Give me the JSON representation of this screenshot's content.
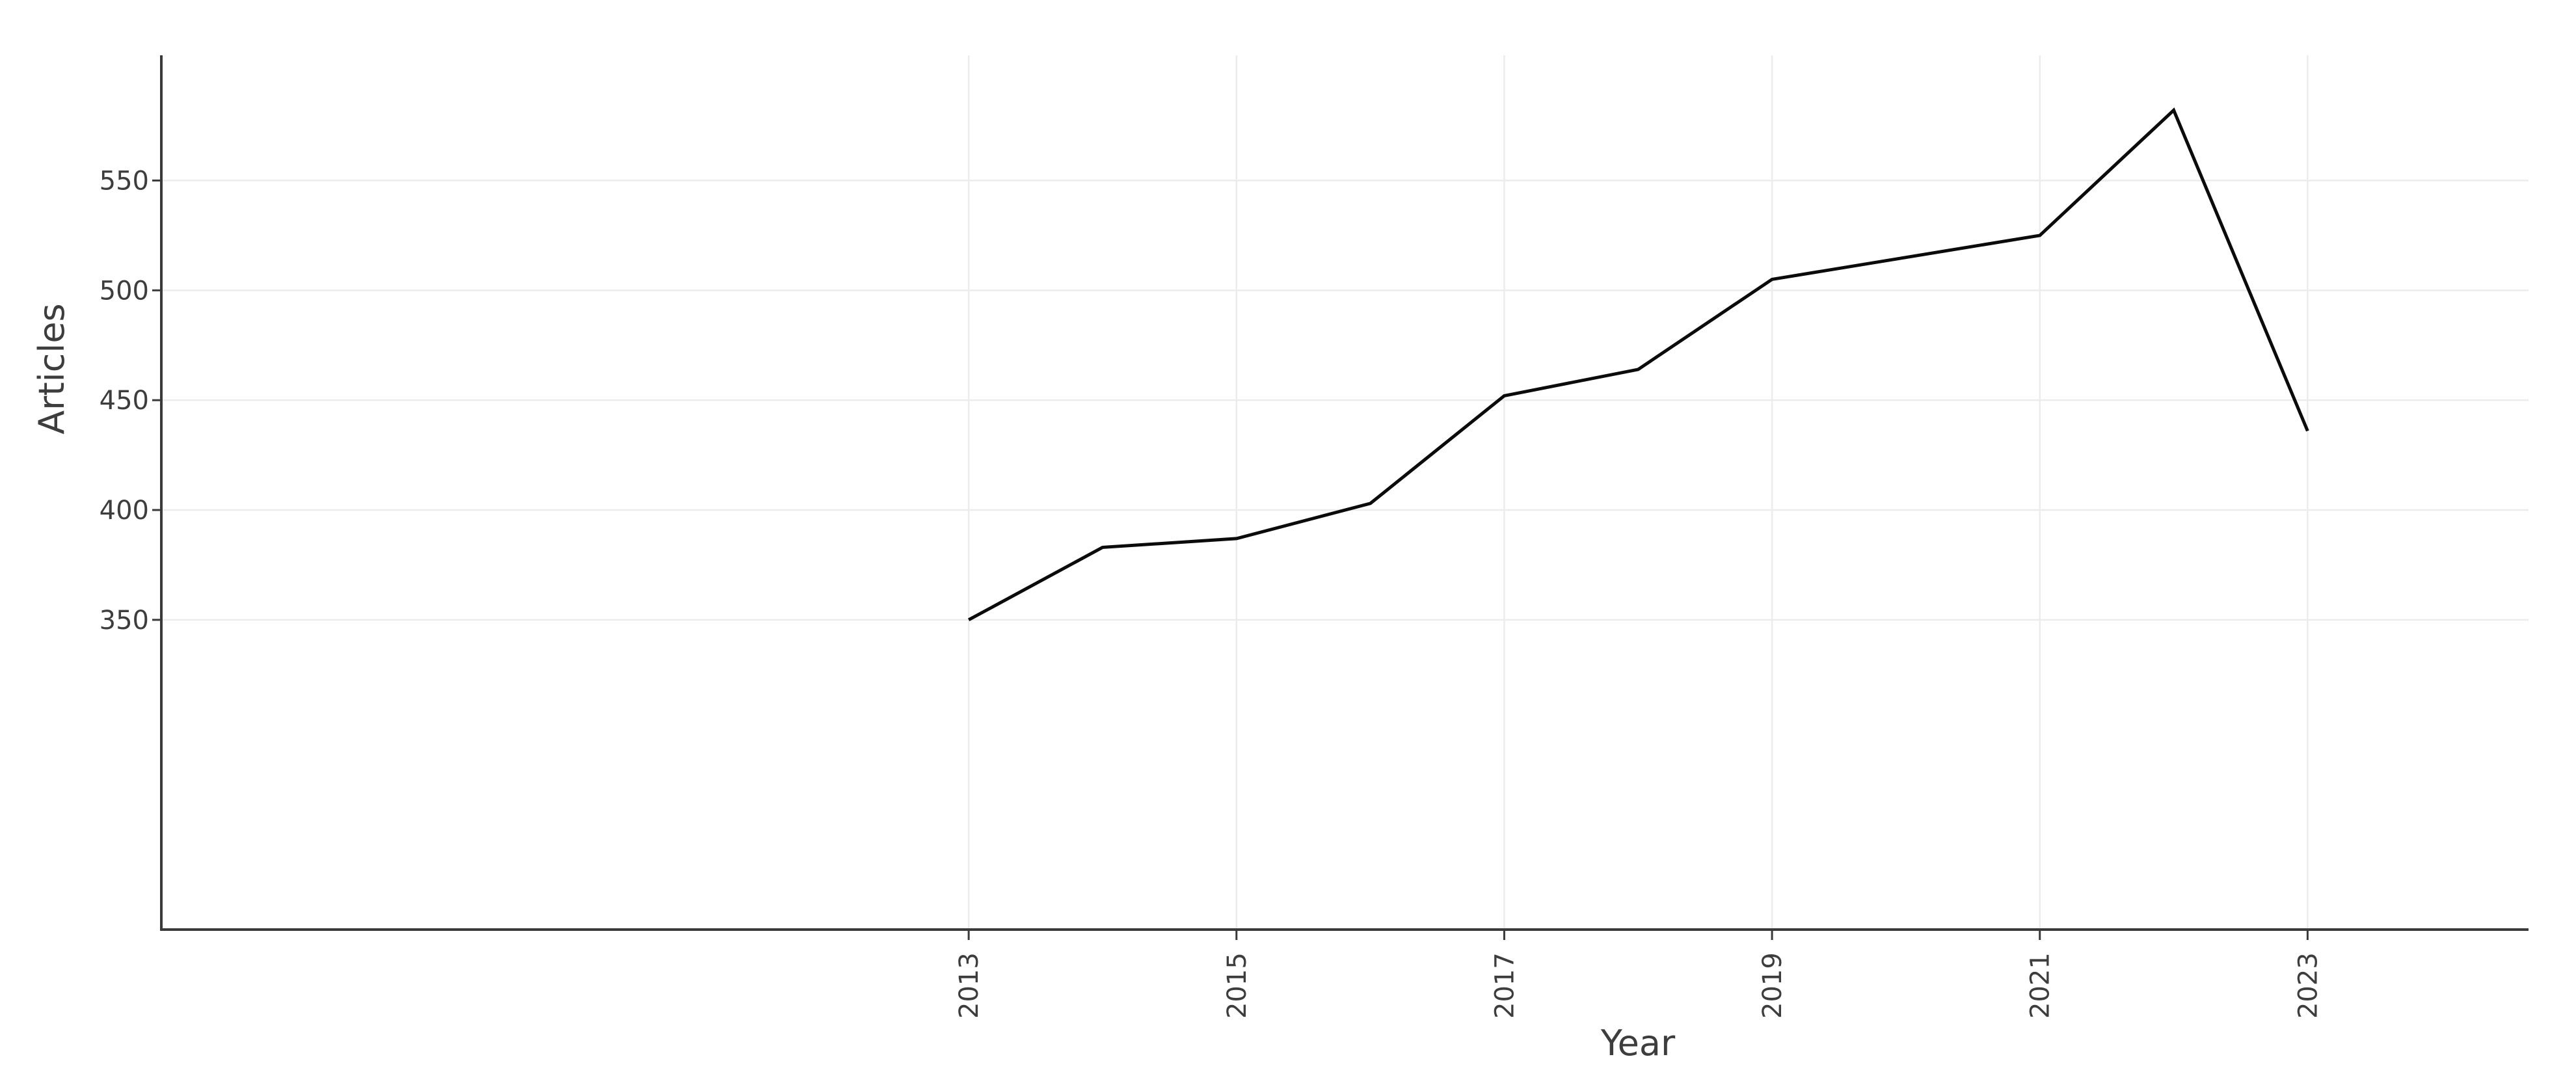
{
  "chart_data": {
    "type": "line",
    "title": "",
    "xlabel": "Year",
    "ylabel": "Articles",
    "x": [
      2013,
      2014,
      2015,
      2016,
      2017,
      2018,
      2019,
      2020,
      2021,
      2022,
      2023
    ],
    "series": [
      {
        "name": "Articles",
        "values": [
          350,
          383,
          387,
          403,
          452,
          464,
          505,
          515,
          525,
          582,
          436
        ]
      }
    ],
    "x_ticks": [
      2013,
      2015,
      2017,
      2019,
      2021,
      2023
    ],
    "x_tick_labels": [
      "2013",
      "2015",
      "2017",
      "2019",
      "2021",
      "2023"
    ],
    "y_ticks": [
      350,
      400,
      450,
      500,
      550
    ],
    "y_tick_labels": [
      "350",
      "400",
      "450",
      "500",
      "550"
    ],
    "xlim": [
      2006.97,
      2024.65
    ],
    "ylim": [
      209,
      607
    ],
    "grid": true,
    "legend_position": "none",
    "x_tick_label_rotation_deg": -90,
    "colors": {
      "line": "#0b0b0b",
      "axis": "#3a3a3a",
      "grid": "#ececec",
      "text": "#3d3d3d",
      "background": "#ffffff"
    }
  }
}
